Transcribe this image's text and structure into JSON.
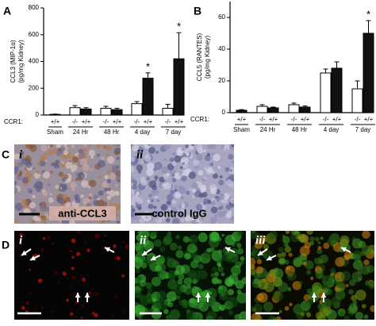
{
  "chart_data": [
    {
      "type": "bar",
      "panel": "A",
      "ylabel": [
        "CCL3 (MIP-1α)",
        "(pg/mg Kidney)"
      ],
      "ylim": [
        0,
        800
      ],
      "yticks": [
        0,
        200,
        400,
        600,
        800
      ],
      "row_label": "CCR1:",
      "groups": [
        {
          "name": "Sham",
          "categories": [
            "+/+"
          ],
          "values": [
            5
          ],
          "errors": [
            2
          ],
          "colors": [
            "#111111"
          ],
          "significance": [
            null
          ]
        },
        {
          "name": "24 Hr",
          "categories": [
            "-/-",
            "+/+"
          ],
          "values": [
            55,
            45
          ],
          "errors": [
            15,
            10
          ],
          "colors": [
            "#ffffff",
            "#111111"
          ],
          "significance": [
            null,
            null
          ]
        },
        {
          "name": "48 Hr",
          "categories": [
            "-/-",
            "+/+"
          ],
          "values": [
            50,
            40
          ],
          "errors": [
            15,
            10
          ],
          "colors": [
            "#ffffff",
            "#111111"
          ],
          "significance": [
            null,
            null
          ]
        },
        {
          "name": "4 day",
          "categories": [
            "-/-",
            "+/+"
          ],
          "values": [
            85,
            275
          ],
          "errors": [
            15,
            40
          ],
          "colors": [
            "#ffffff",
            "#111111"
          ],
          "significance": [
            null,
            "*"
          ]
        },
        {
          "name": "7 day",
          "categories": [
            "-/-",
            "+/+"
          ],
          "values": [
            50,
            420
          ],
          "errors": [
            30,
            195
          ],
          "colors": [
            "#ffffff",
            "#111111"
          ],
          "significance": [
            null,
            "*"
          ]
        }
      ]
    },
    {
      "type": "bar",
      "panel": "B",
      "ylabel": [
        "CCL5 (RANTES)",
        "(pg/mg Kidney)"
      ],
      "ylim": [
        0,
        70
      ],
      "yticks": [
        0,
        20,
        40,
        60
      ],
      "row_label": "CCR1:",
      "groups": [
        {
          "name": "Sham",
          "categories": [
            "+/+"
          ],
          "values": [
            1.5
          ],
          "errors": [
            0.4
          ],
          "colors": [
            "#111111"
          ],
          "significance": [
            null
          ]
        },
        {
          "name": "24 Hr",
          "categories": [
            "-/-",
            "+/+"
          ],
          "values": [
            4,
            3
          ],
          "errors": [
            1,
            0.5
          ],
          "colors": [
            "#ffffff",
            "#111111"
          ],
          "significance": [
            null,
            null
          ]
        },
        {
          "name": "48 Hr",
          "categories": [
            "-/-",
            "+/+"
          ],
          "values": [
            5,
            3.5
          ],
          "errors": [
            1,
            0.7
          ],
          "colors": [
            "#ffffff",
            "#111111"
          ],
          "significance": [
            null,
            null
          ]
        },
        {
          "name": "4 day",
          "categories": [
            "-/-",
            "+/+"
          ],
          "values": [
            25,
            28
          ],
          "errors": [
            2.5,
            4
          ],
          "colors": [
            "#ffffff",
            "#111111"
          ],
          "significance": [
            null,
            null
          ]
        },
        {
          "name": "7 day",
          "categories": [
            "-/-",
            "+/+"
          ],
          "values": [
            15,
            50
          ],
          "errors": [
            5,
            8
          ],
          "colors": [
            "#ffffff",
            "#111111"
          ],
          "significance": [
            null,
            "*"
          ]
        }
      ]
    }
  ],
  "panel_c": {
    "label": "C",
    "images": [
      {
        "numeral": "i",
        "caption": "anti-CCL3"
      },
      {
        "numeral": "ii",
        "caption": "control IgG"
      }
    ]
  },
  "panel_d": {
    "label": "D",
    "images": [
      {
        "numeral": "i"
      },
      {
        "numeral": "ii"
      },
      {
        "numeral": "iii"
      }
    ]
  }
}
